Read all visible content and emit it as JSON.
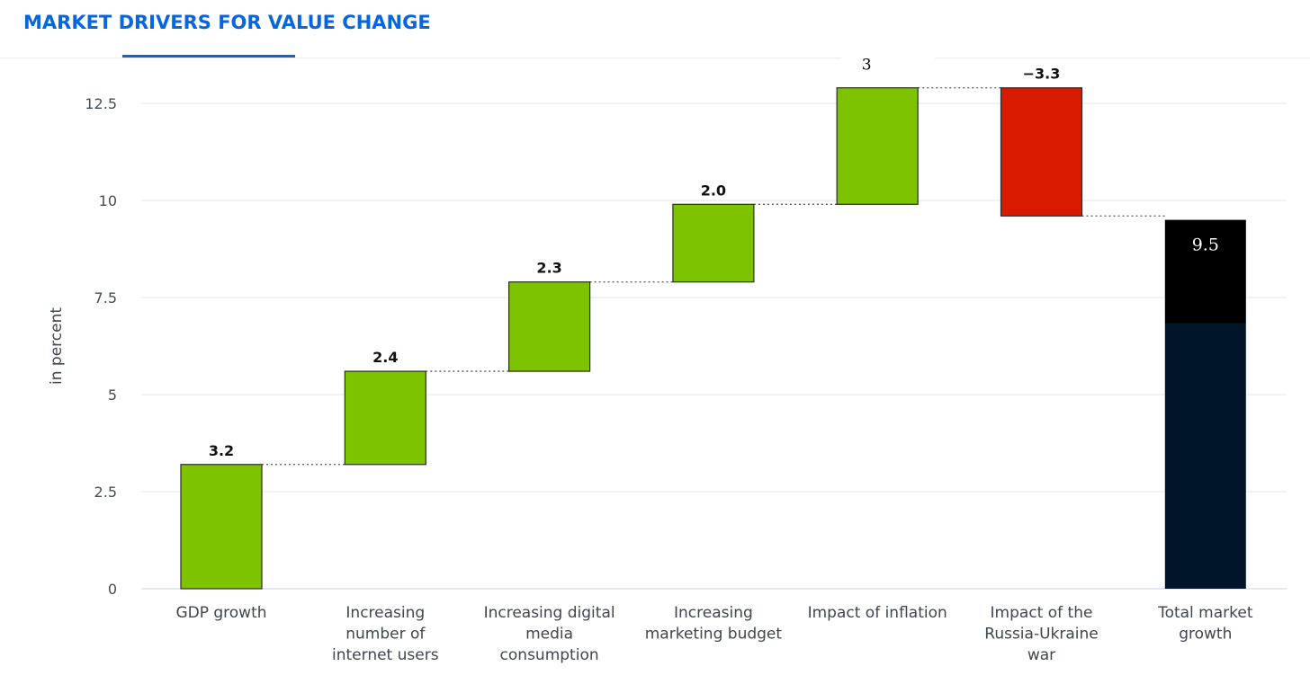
{
  "header": {
    "tab_title": "MARKET DRIVERS FOR VALUE CHANGE"
  },
  "chart_data": {
    "type": "bar",
    "subtype": "waterfall",
    "title": "",
    "xlabel": "",
    "ylabel": "in percent",
    "ylim": [
      0,
      12.5
    ],
    "yticks": [
      0,
      2.5,
      5,
      7.5,
      10,
      12.5
    ],
    "ytick_labels": [
      "0",
      "2.5",
      "5",
      "7.5",
      "10",
      "12.5"
    ],
    "grid": true,
    "categories": [
      [
        "GDP growth"
      ],
      [
        "Increasing",
        "number of",
        "internet users"
      ],
      [
        "Increasing digital",
        "media",
        "consumption"
      ],
      [
        "Increasing",
        "marketing budget"
      ],
      [
        "Impact of inflation"
      ],
      [
        "Impact of the",
        "Russia-Ukraine",
        "war"
      ],
      [
        "Total market",
        "growth"
      ]
    ],
    "values": [
      3.2,
      2.4,
      2.3,
      2.0,
      3,
      -3.3,
      9.5
    ],
    "data_labels": [
      "3.2",
      "2.4",
      "2.3",
      "2.0",
      "3",
      "−3.3",
      "9.5"
    ],
    "is_total": [
      false,
      false,
      false,
      false,
      false,
      false,
      true
    ],
    "colors": {
      "increase": "#7dc300",
      "decrease": "#d71a00",
      "total_top": "#000000",
      "total_bottom": "#001528",
      "connector": "#555555",
      "grid": "#e6e6e6",
      "axis": "#c8d0e0"
    }
  }
}
